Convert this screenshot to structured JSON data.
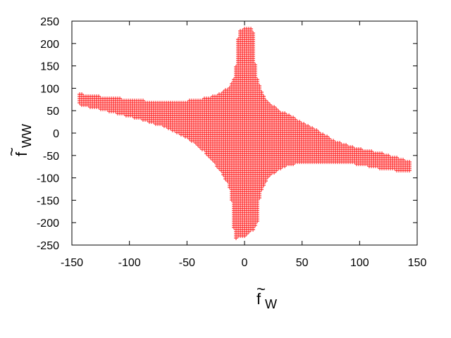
{
  "chart_data": {
    "type": "scatter",
    "marker": "plus",
    "color": "#ff0000",
    "grid": false,
    "xlabel": {
      "base": "f",
      "sub": "W",
      "accent": "~"
    },
    "ylabel": {
      "base": "f",
      "sub": "WW",
      "accent": "~"
    },
    "xlim": [
      -150,
      150
    ],
    "ylim": [
      -250,
      250
    ],
    "x_ticks": [
      "-150",
      "-100",
      "-50",
      "0",
      "50",
      "100",
      "150"
    ],
    "y_ticks": [
      "250",
      "200",
      "150",
      "100",
      "50",
      "0",
      "-50",
      "-100",
      "-150",
      "-200",
      "-250"
    ],
    "region": {
      "description_points": "upper boundary (x, y) then lower boundary (x, y) of the filled scatter region",
      "upper": [
        [
          -145,
          88
        ],
        [
          -120,
          80
        ],
        [
          -100,
          75
        ],
        [
          -80,
          71
        ],
        [
          -60,
          70
        ],
        [
          -40,
          74
        ],
        [
          -30,
          80
        ],
        [
          -20,
          90
        ],
        [
          -12,
          105
        ],
        [
          -8,
          130
        ],
        [
          -7,
          160
        ],
        [
          -6,
          195
        ],
        [
          -5,
          228
        ],
        [
          -3,
          232
        ],
        [
          0,
          233
        ],
        [
          3,
          234
        ],
        [
          7,
          236
        ],
        [
          8,
          200
        ],
        [
          9,
          160
        ],
        [
          10,
          130
        ],
        [
          15,
          90
        ],
        [
          20,
          70
        ],
        [
          30,
          50
        ],
        [
          40,
          38
        ],
        [
          60,
          10
        ],
        [
          80,
          -20
        ],
        [
          100,
          -35
        ],
        [
          120,
          -45
        ],
        [
          145,
          -65
        ]
      ],
      "lower": [
        [
          145,
          -88
        ],
        [
          120,
          -80
        ],
        [
          100,
          -70
        ],
        [
          80,
          -65
        ],
        [
          60,
          -65
        ],
        [
          40,
          -70
        ],
        [
          30,
          -80
        ],
        [
          20,
          -100
        ],
        [
          14,
          -130
        ],
        [
          12,
          -160
        ],
        [
          11,
          -200
        ],
        [
          8,
          -215
        ],
        [
          0,
          -230
        ],
        [
          -8,
          -236
        ],
        [
          -10,
          -200
        ],
        [
          -11,
          -150
        ],
        [
          -13,
          -120
        ],
        [
          -18,
          -95
        ],
        [
          -25,
          -70
        ],
        [
          -35,
          -40
        ],
        [
          -50,
          -10
        ],
        [
          -70,
          15
        ],
        [
          -90,
          30
        ],
        [
          -110,
          43
        ],
        [
          -145,
          65
        ]
      ]
    }
  }
}
